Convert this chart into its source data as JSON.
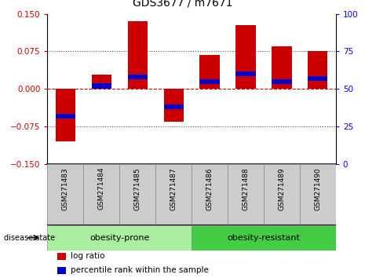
{
  "title": "GDS3677 / m7671",
  "samples": [
    "GSM271483",
    "GSM271484",
    "GSM271485",
    "GSM271487",
    "GSM271486",
    "GSM271488",
    "GSM271489",
    "GSM271490"
  ],
  "log_ratios": [
    -0.105,
    0.028,
    0.135,
    -0.065,
    0.068,
    0.128,
    0.085,
    0.075
  ],
  "percentile_ranks": [
    32,
    52,
    58,
    38,
    55,
    60,
    55,
    57
  ],
  "group_prone": {
    "label": "obesity-prone",
    "count": 4,
    "color": "#AAEEA0"
  },
  "group_resistant": {
    "label": "obesity-resistant",
    "count": 4,
    "color": "#44CC44"
  },
  "bar_color": "#CC0000",
  "percentile_color": "#0000CC",
  "ylim": [
    -0.15,
    0.15
  ],
  "right_ylim": [
    0,
    100
  ],
  "yticks_left": [
    -0.15,
    -0.075,
    0,
    0.075,
    0.15
  ],
  "yticks_right": [
    0,
    25,
    50,
    75,
    100
  ],
  "hline_zero_color": "#CC0000",
  "hline_other_color": "#555555",
  "background_color": "#ffffff",
  "bar_width": 0.55,
  "disease_state_label": "disease state",
  "legend_items": [
    "log ratio",
    "percentile rank within the sample"
  ]
}
